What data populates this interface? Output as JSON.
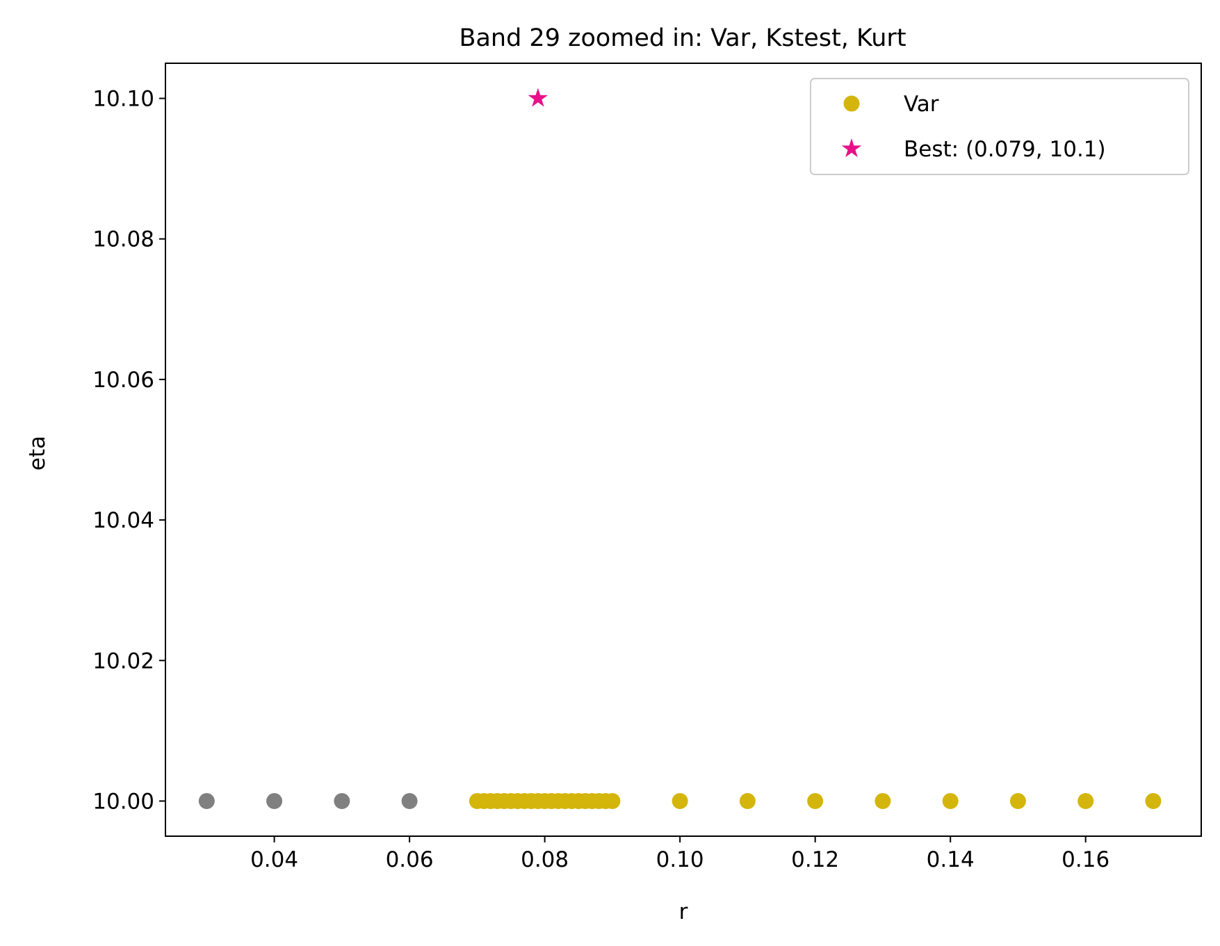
{
  "chart_data": {
    "type": "scatter",
    "title": "Band 29 zoomed in: Var, Kstest, Kurt",
    "xlabel": "r",
    "ylabel": "eta",
    "xlim": [
      0.0239,
      0.1771
    ],
    "ylim": [
      9.995,
      10.105
    ],
    "x_ticks": [
      0.04,
      0.06,
      0.08,
      0.1,
      0.12,
      0.14,
      0.16
    ],
    "x_tick_labels": [
      "0.04",
      "0.06",
      "0.08",
      "0.10",
      "0.12",
      "0.14",
      "0.16"
    ],
    "y_ticks": [
      10.0,
      10.02,
      10.04,
      10.06,
      10.08,
      10.1
    ],
    "y_tick_labels": [
      "10.00",
      "10.02",
      "10.04",
      "10.06",
      "10.08",
      "10.10"
    ],
    "grid": false,
    "legend_position": "top-right",
    "series": [
      {
        "name": "",
        "marker": "circle",
        "color": "#808080",
        "points": [
          {
            "x": 0.03,
            "y": 10.0
          },
          {
            "x": 0.04,
            "y": 10.0
          },
          {
            "x": 0.05,
            "y": 10.0
          },
          {
            "x": 0.06,
            "y": 10.0
          }
        ]
      },
      {
        "name": "Var",
        "marker": "circle",
        "color": "#d4b50b",
        "points": [
          {
            "x": 0.07,
            "y": 10.0
          },
          {
            "x": 0.071,
            "y": 10.0
          },
          {
            "x": 0.072,
            "y": 10.0
          },
          {
            "x": 0.073,
            "y": 10.0
          },
          {
            "x": 0.074,
            "y": 10.0
          },
          {
            "x": 0.075,
            "y": 10.0
          },
          {
            "x": 0.076,
            "y": 10.0
          },
          {
            "x": 0.077,
            "y": 10.0
          },
          {
            "x": 0.078,
            "y": 10.0
          },
          {
            "x": 0.079,
            "y": 10.0
          },
          {
            "x": 0.08,
            "y": 10.0
          },
          {
            "x": 0.081,
            "y": 10.0
          },
          {
            "x": 0.082,
            "y": 10.0
          },
          {
            "x": 0.083,
            "y": 10.0
          },
          {
            "x": 0.084,
            "y": 10.0
          },
          {
            "x": 0.085,
            "y": 10.0
          },
          {
            "x": 0.086,
            "y": 10.0
          },
          {
            "x": 0.087,
            "y": 10.0
          },
          {
            "x": 0.088,
            "y": 10.0
          },
          {
            "x": 0.089,
            "y": 10.0
          },
          {
            "x": 0.09,
            "y": 10.0
          },
          {
            "x": 0.1,
            "y": 10.0
          },
          {
            "x": 0.11,
            "y": 10.0
          },
          {
            "x": 0.12,
            "y": 10.0
          },
          {
            "x": 0.13,
            "y": 10.0
          },
          {
            "x": 0.14,
            "y": 10.0
          },
          {
            "x": 0.15,
            "y": 10.0
          },
          {
            "x": 0.16,
            "y": 10.0
          },
          {
            "x": 0.17,
            "y": 10.0
          }
        ]
      },
      {
        "name": "Best: (0.079, 10.1)",
        "marker": "star",
        "color": "#e8118a",
        "points": [
          {
            "x": 0.079,
            "y": 10.1
          }
        ]
      }
    ],
    "legend": [
      {
        "label": "Var",
        "marker": "circle",
        "color": "#d4b50b"
      },
      {
        "label": "Best: (0.079, 10.1)",
        "marker": "star",
        "color": "#e8118a"
      }
    ]
  }
}
